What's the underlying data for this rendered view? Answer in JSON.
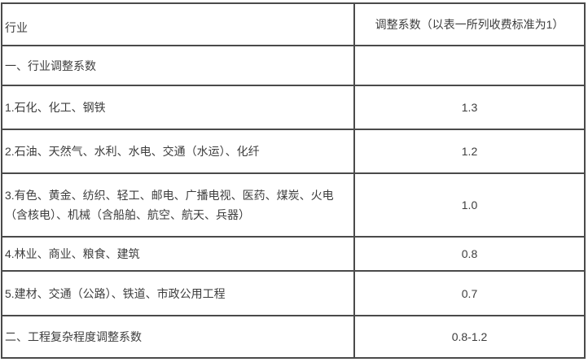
{
  "table": {
    "title_semantics": "行业调整系数表",
    "header": {
      "industry": "行业",
      "coefficient": "调整系数（以表一所列收费标准为1）"
    },
    "rows": [
      {
        "industry": "一、行业调整系数",
        "coefficient": ""
      },
      {
        "industry": "1.石化、化工、钢铁",
        "coefficient": "1.3"
      },
      {
        "industry": "2.石油、天然气、水利、水电、交通（水运）、化纤",
        "coefficient": "1.2"
      },
      {
        "industry": "3.有色、黄金、纺织、轻工、邮电、广播电视、医药、煤炭、火电（含核电）、机械（含船舶、航空、航天、兵器）",
        "coefficient": "1.0"
      },
      {
        "industry": "4.林业、商业、粮食、建筑",
        "coefficient": "0.8"
      },
      {
        "industry": "5.建材、交通（公路）、铁道、市政公用工程",
        "coefficient": "0.7"
      },
      {
        "industry": "二、工程复杂程度调整系数",
        "coefficient": "0.8-1.2"
      }
    ],
    "colors": {
      "border": "#4a4a4a",
      "text": "#3d3d3d",
      "background": "#ffffff"
    }
  }
}
